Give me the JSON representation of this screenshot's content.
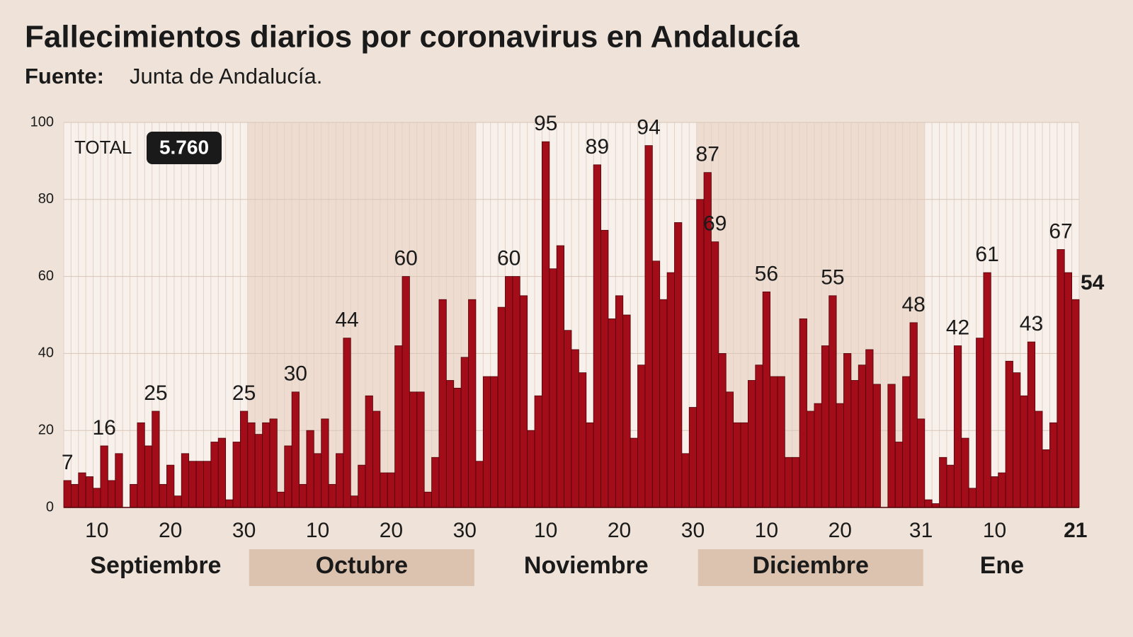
{
  "chart_data": {
    "type": "bar",
    "title": "Fallecimientos diarios por coronavirus en Andalucía",
    "source_label": "Fuente:",
    "source": "Junta de Andalucía.",
    "total": {
      "label": "TOTAL",
      "value": 5760,
      "value_label": "5.760"
    },
    "color": "#a30d1a",
    "ylim": [
      0,
      100
    ],
    "yticks": [
      0,
      20,
      40,
      60,
      80,
      100
    ],
    "grid": true,
    "months": [
      {
        "name": "Septiembre",
        "days": 25
      },
      {
        "name": "Octubre",
        "days": 31
      },
      {
        "name": "Noviembre",
        "days": 30
      },
      {
        "name": "Diciembre",
        "days": 31
      },
      {
        "name": "Ene",
        "days": 21
      }
    ],
    "categories": [
      null,
      null,
      null,
      null,
      "10",
      null,
      null,
      null,
      null,
      null,
      null,
      null,
      null,
      null,
      "20",
      null,
      null,
      null,
      null,
      null,
      null,
      null,
      null,
      null,
      "30",
      null,
      null,
      null,
      null,
      null,
      null,
      null,
      null,
      null,
      "10",
      null,
      null,
      null,
      null,
      null,
      null,
      null,
      null,
      null,
      "20",
      null,
      null,
      null,
      null,
      null,
      null,
      null,
      null,
      null,
      "30",
      null,
      null,
      null,
      null,
      null,
      null,
      null,
      null,
      null,
      null,
      "10",
      null,
      null,
      null,
      null,
      null,
      null,
      null,
      null,
      null,
      "20",
      null,
      null,
      null,
      null,
      null,
      null,
      null,
      null,
      null,
      "30",
      null,
      null,
      null,
      null,
      null,
      null,
      null,
      null,
      null,
      "10",
      null,
      null,
      null,
      null,
      null,
      null,
      null,
      null,
      null,
      "20",
      null,
      null,
      null,
      null,
      null,
      null,
      null,
      null,
      null,
      null,
      "31",
      null,
      null,
      null,
      null,
      null,
      null,
      null,
      null,
      null,
      "10",
      null,
      null,
      null,
      null,
      null,
      null,
      null,
      null,
      null,
      null,
      "21"
    ],
    "values": [
      7,
      6,
      9,
      8,
      5,
      16,
      7,
      14,
      0,
      6,
      22,
      16,
      25,
      6,
      11,
      3,
      14,
      12,
      12,
      12,
      17,
      18,
      2,
      17,
      25,
      22,
      19,
      22,
      23,
      4,
      16,
      30,
      6,
      20,
      14,
      23,
      6,
      14,
      44,
      3,
      11,
      29,
      25,
      9,
      9,
      42,
      60,
      30,
      30,
      4,
      13,
      54,
      33,
      31,
      39,
      54,
      12,
      34,
      34,
      52,
      60,
      60,
      55,
      20,
      29,
      95,
      62,
      68,
      46,
      41,
      35,
      22,
      89,
      72,
      49,
      55,
      50,
      18,
      37,
      94,
      64,
      54,
      61,
      74,
      14,
      26,
      80,
      87,
      69,
      40,
      30,
      22,
      22,
      33,
      37,
      56,
      34,
      34,
      13,
      13,
      49,
      25,
      27,
      42,
      55,
      27,
      40,
      33,
      37,
      41,
      32,
      0,
      32,
      17,
      34,
      48,
      23,
      2,
      1,
      13,
      11,
      42,
      18,
      5,
      44,
      61,
      8,
      9,
      38,
      35,
      29,
      43,
      25,
      15,
      22,
      67,
      61,
      54
    ],
    "value_labels": [
      "7",
      null,
      null,
      null,
      null,
      "16",
      null,
      null,
      null,
      null,
      null,
      null,
      "25",
      null,
      null,
      null,
      null,
      null,
      null,
      null,
      null,
      null,
      null,
      null,
      "25",
      null,
      null,
      null,
      null,
      null,
      null,
      "30",
      null,
      null,
      null,
      null,
      null,
      null,
      "44",
      null,
      null,
      null,
      null,
      null,
      null,
      null,
      "60",
      null,
      null,
      null,
      null,
      null,
      null,
      null,
      null,
      null,
      null,
      null,
      null,
      null,
      "60",
      null,
      null,
      null,
      null,
      "95",
      null,
      null,
      null,
      null,
      null,
      null,
      "89",
      null,
      null,
      null,
      null,
      null,
      null,
      "94",
      null,
      null,
      null,
      null,
      null,
      null,
      null,
      "87",
      "69",
      null,
      null,
      null,
      null,
      null,
      null,
      "56",
      null,
      null,
      null,
      null,
      null,
      null,
      null,
      null,
      "55",
      null,
      null,
      null,
      null,
      null,
      null,
      null,
      null,
      null,
      null,
      "48",
      null,
      null,
      null,
      null,
      null,
      "42",
      null,
      null,
      null,
      "61",
      null,
      null,
      null,
      null,
      null,
      "43",
      null,
      null,
      null,
      "67",
      null,
      "54"
    ]
  }
}
